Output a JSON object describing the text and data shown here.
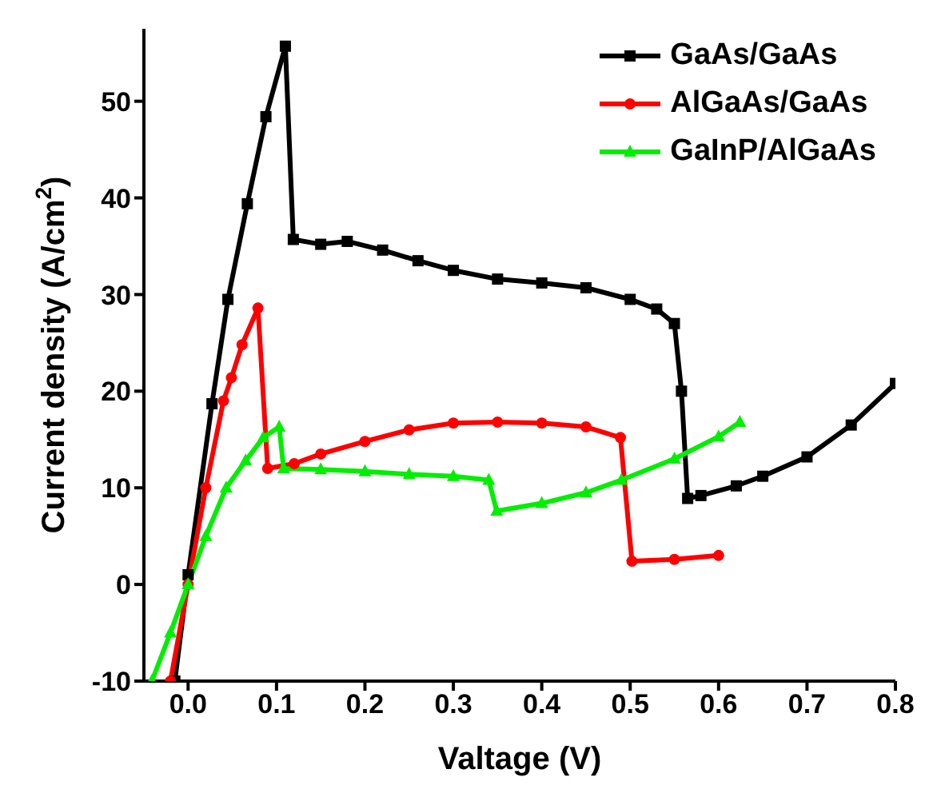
{
  "chart_data": {
    "type": "line",
    "xlabel": "Valtage (V)",
    "ylabel": "Current density (A/cm$^{2}$)",
    "xlim": [
      -0.05,
      0.8
    ],
    "xticks": [
      {
        "value": 0,
        "label": "0.0"
      },
      0.1,
      0.2,
      0.3,
      0.4,
      0.5,
      0.6,
      0.7,
      0.8
    ],
    "ylim": [
      -10,
      57.5
    ],
    "yticks": [
      -10,
      0,
      10,
      20,
      30,
      40,
      50
    ],
    "grid": false,
    "legend": "top right",
    "line_style": "solid",
    "series": [
      {
        "name": "GaAs/GaAs",
        "color": "#000000",
        "marker": "square",
        "x": [
          -0.015,
          0,
          0.027,
          0.045,
          0.067,
          0.088,
          0.11,
          0.119,
          0.15,
          0.18,
          0.22,
          0.26,
          0.3,
          0.35,
          0.4,
          0.45,
          0.5,
          0.53,
          0.55,
          0.558,
          0.565,
          0.58,
          0.62,
          0.65,
          0.7,
          0.75,
          0.8
        ],
        "values": [
          -10,
          1,
          18.7,
          29.5,
          39.4,
          48.4,
          55.7,
          35.7,
          35.2,
          35.5,
          34.6,
          33.5,
          32.5,
          31.6,
          31.2,
          30.7,
          29.5,
          28.5,
          27,
          20,
          8.9,
          9.2,
          10.2,
          11.2,
          13.2,
          16.5,
          20.8
        ]
      },
      {
        "name": "AlGaAs/GaAs",
        "color": "#ff0000",
        "marker": "circle",
        "x": [
          -0.02,
          0,
          0.02,
          0.04,
          0.049,
          0.061,
          0.079,
          0.09,
          0.12,
          0.15,
          0.2,
          0.25,
          0.3,
          0.35,
          0.4,
          0.45,
          0.489,
          0.502,
          0.55,
          0.6
        ],
        "values": [
          -10,
          0,
          10,
          19,
          21.4,
          24.8,
          28.6,
          12,
          12.5,
          13.5,
          14.8,
          16,
          16.7,
          16.8,
          16.7,
          16.3,
          15.2,
          2.4,
          2.6,
          3
        ]
      },
      {
        "name": "GaInP/AlGaAs",
        "color": "#00ee00",
        "marker": "triangle",
        "x": [
          -0.041,
          -0.02,
          0,
          0.02,
          0.043,
          0.065,
          0.085,
          0.103,
          0.108,
          0.15,
          0.2,
          0.25,
          0.3,
          0.34,
          0.349,
          0.4,
          0.45,
          0.49,
          0.55,
          0.6,
          0.624
        ],
        "values": [
          -10,
          -5,
          0,
          5,
          10,
          12.8,
          15.2,
          16.3,
          12,
          11.9,
          11.7,
          11.4,
          11.2,
          10.8,
          7.6,
          8.4,
          9.5,
          10.8,
          13,
          15.3,
          16.8
        ]
      }
    ]
  }
}
